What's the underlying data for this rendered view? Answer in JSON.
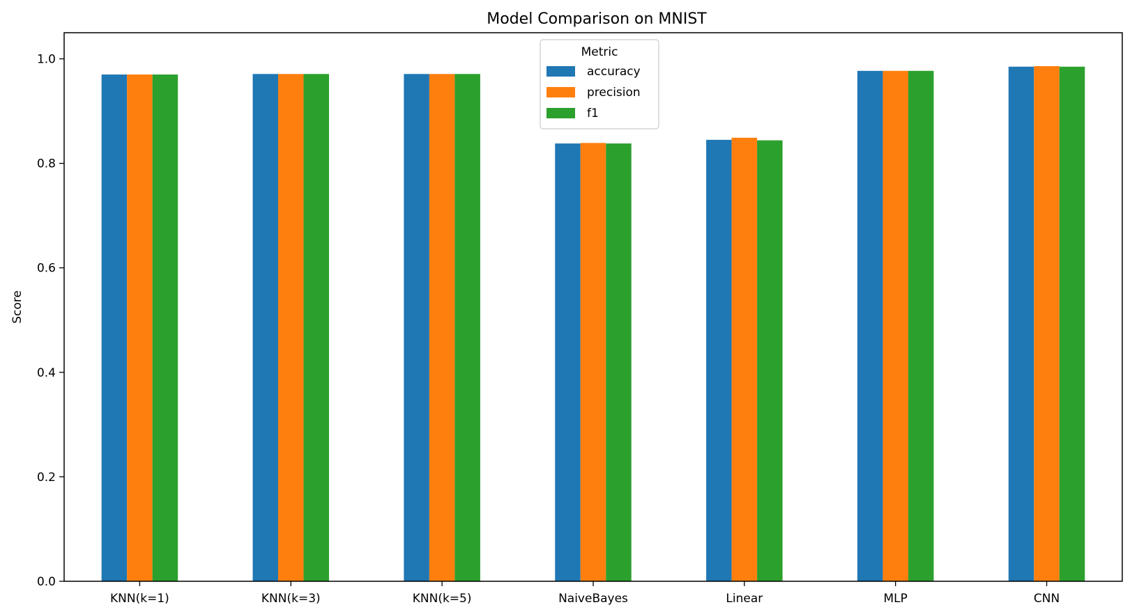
{
  "chart_data": {
    "type": "bar",
    "title": "Model Comparison on MNIST",
    "xlabel": "",
    "ylabel": "Score",
    "ylim": [
      0,
      1.05
    ],
    "yticks": [
      "0.0",
      "0.2",
      "0.4",
      "0.6",
      "0.8",
      "1.0"
    ],
    "grid": false,
    "categories": [
      "KNN(k=1)",
      "KNN(k=3)",
      "KNN(k=5)",
      "NaiveBayes",
      "Linear",
      "MLP",
      "CNN"
    ],
    "legend": {
      "title": "Metric",
      "placement": "upper center"
    },
    "series": [
      {
        "name": "accuracy",
        "color": "#1f77b4",
        "values": [
          0.97,
          0.971,
          0.971,
          0.838,
          0.845,
          0.977,
          0.985
        ]
      },
      {
        "name": "precision",
        "color": "#ff7f0e",
        "values": [
          0.97,
          0.971,
          0.971,
          0.839,
          0.849,
          0.977,
          0.986
        ]
      },
      {
        "name": "f1",
        "color": "#2ca02c",
        "values": [
          0.97,
          0.971,
          0.971,
          0.838,
          0.844,
          0.977,
          0.985
        ]
      }
    ]
  }
}
